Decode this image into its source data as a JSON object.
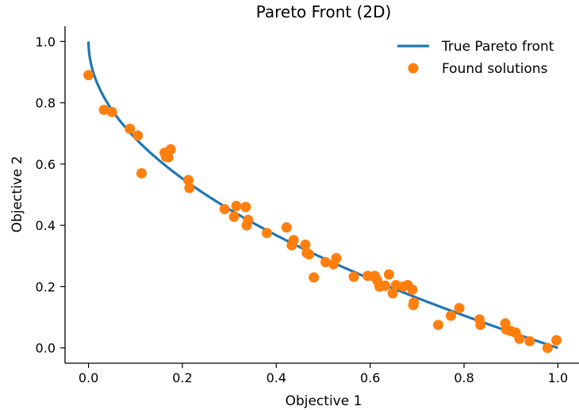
{
  "chart_data": {
    "type": "scatter",
    "title": "Pareto Front (2D)",
    "xlabel": "Objective 1",
    "ylabel": "Objective 2",
    "xlim": [
      -0.05,
      1.05
    ],
    "ylim": [
      -0.05,
      1.05
    ],
    "xticks": [
      "0.0",
      "0.2",
      "0.4",
      "0.6",
      "0.8",
      "1.0"
    ],
    "yticks": [
      "0.0",
      "0.2",
      "0.4",
      "0.6",
      "0.8",
      "1.0"
    ],
    "grid": false,
    "legend": {
      "position": "top-right",
      "entries": [
        "True Pareto front",
        "Found solutions"
      ]
    },
    "series": [
      {
        "name": "True Pareto front",
        "kind": "line",
        "color": "#1f77b4",
        "function": "y = 1 - sqrt(x)",
        "x_range": [
          0,
          1
        ]
      },
      {
        "name": "Found solutions",
        "kind": "scatter",
        "color": "#ff7f0e",
        "points": [
          [
            0.0,
            0.89
          ],
          [
            0.033,
            0.777
          ],
          [
            0.05,
            0.77
          ],
          [
            0.088,
            0.715
          ],
          [
            0.105,
            0.693
          ],
          [
            0.113,
            0.57
          ],
          [
            0.162,
            0.637
          ],
          [
            0.165,
            0.624
          ],
          [
            0.17,
            0.622
          ],
          [
            0.175,
            0.648
          ],
          [
            0.213,
            0.548
          ],
          [
            0.215,
            0.522
          ],
          [
            0.29,
            0.453
          ],
          [
            0.31,
            0.428
          ],
          [
            0.315,
            0.463
          ],
          [
            0.335,
            0.46
          ],
          [
            0.337,
            0.4
          ],
          [
            0.34,
            0.418
          ],
          [
            0.38,
            0.375
          ],
          [
            0.422,
            0.393
          ],
          [
            0.433,
            0.335
          ],
          [
            0.437,
            0.352
          ],
          [
            0.462,
            0.337
          ],
          [
            0.465,
            0.31
          ],
          [
            0.47,
            0.305
          ],
          [
            0.48,
            0.23
          ],
          [
            0.505,
            0.28
          ],
          [
            0.522,
            0.273
          ],
          [
            0.528,
            0.293
          ],
          [
            0.565,
            0.232
          ],
          [
            0.595,
            0.235
          ],
          [
            0.61,
            0.235
          ],
          [
            0.615,
            0.22
          ],
          [
            0.62,
            0.2
          ],
          [
            0.632,
            0.203
          ],
          [
            0.64,
            0.24
          ],
          [
            0.648,
            0.178
          ],
          [
            0.655,
            0.205
          ],
          [
            0.67,
            0.2
          ],
          [
            0.68,
            0.205
          ],
          [
            0.69,
            0.19
          ],
          [
            0.692,
            0.14
          ],
          [
            0.693,
            0.148
          ],
          [
            0.745,
            0.075
          ],
          [
            0.772,
            0.105
          ],
          [
            0.79,
            0.13
          ],
          [
            0.833,
            0.093
          ],
          [
            0.835,
            0.075
          ],
          [
            0.888,
            0.08
          ],
          [
            0.89,
            0.06
          ],
          [
            0.9,
            0.055
          ],
          [
            0.91,
            0.05
          ],
          [
            0.918,
            0.03
          ],
          [
            0.94,
            0.022
          ],
          [
            0.978,
            0.0
          ],
          [
            0.997,
            0.025
          ]
        ]
      }
    ]
  }
}
